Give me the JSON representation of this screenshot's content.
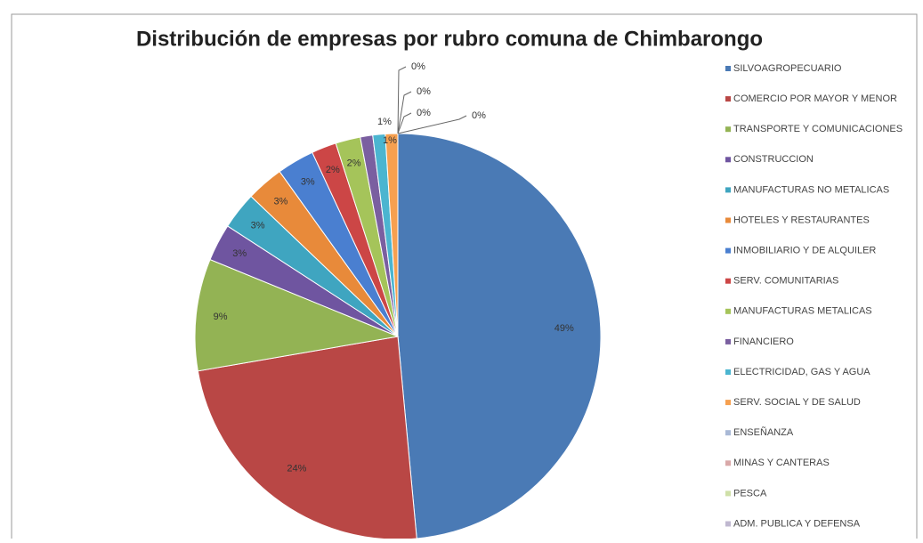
{
  "chart_data": {
    "type": "pie",
    "title": "Distribución de empresas por rubro comuna de Chimbarongo",
    "categories": [
      "SILVOAGROPECUARIO",
      "COMERCIO POR MAYOR Y MENOR",
      "TRANSPORTE Y COMUNICACIONES",
      "CONSTRUCCION",
      "MANUFACTURAS NO METALICAS",
      "HOTELES Y RESTAURANTES",
      "INMOBILIARIO Y DE ALQUILER",
      "SERV. COMUNITARIAS",
      "MANUFACTURAS METALICAS",
      "FINANCIERO",
      "ELECTRICIDAD, GAS Y AGUA",
      "SERV. SOCIAL Y DE SALUD",
      "ENSEÑANZA",
      "MINAS Y CANTERAS",
      "PESCA",
      "ADM. PUBLICA Y DEFENSA"
    ],
    "values": [
      49,
      24,
      9,
      3,
      3,
      3,
      3,
      2,
      2,
      1,
      1,
      1,
      0,
      0,
      0,
      0
    ],
    "value_labels": [
      "49%",
      "24%",
      "9%",
      "3%",
      "3%",
      "3%",
      "3%",
      "2%",
      "2%",
      "1%",
      "1%",
      "1%",
      "0%",
      "0%",
      "0%",
      "0%"
    ],
    "colors": [
      "#4a7ab5",
      "#b94745",
      "#93b354",
      "#6f55a0",
      "#3fa5c0",
      "#e88a3a",
      "#4a7fd0",
      "#cc4646",
      "#a5c45a",
      "#7a5fa0",
      "#4bb5d0",
      "#f6a050",
      "#a9b9d6",
      "#d9a8a8",
      "#cfe0a8",
      "#c0b8d0"
    ],
    "legend": "right"
  }
}
